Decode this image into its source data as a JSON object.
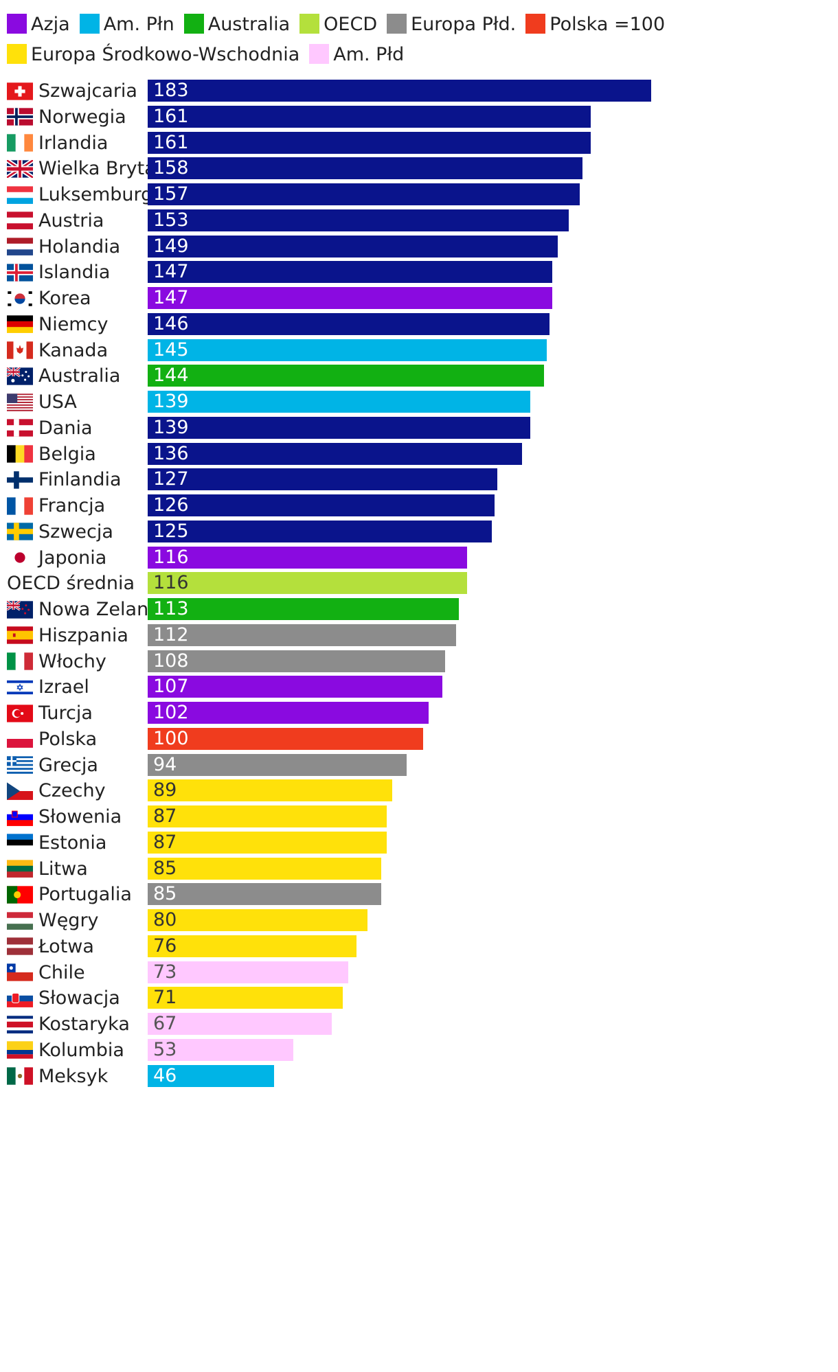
{
  "legend": [
    {
      "label": "Azja",
      "color": "#8a0ae0"
    },
    {
      "label": "Am. Płn",
      "color": "#00b4e6"
    },
    {
      "label": "Australia",
      "color": "#12b012"
    },
    {
      "label": "OECD",
      "color": "#b4e03c"
    },
    {
      "label": "Europa Płd.",
      "color": "#8c8c8c"
    },
    {
      "label": "Polska =100",
      "color": "#f03c1e"
    },
    {
      "label": "Europa Środkowo-Wschodnia",
      "color": "#ffe10a"
    },
    {
      "label": "Am. Płd",
      "color": "#ffc8ff"
    }
  ],
  "colors": {
    "europa_zach": "#0a148c",
    "azja": "#8a0ae0",
    "am_pln": "#00b4e6",
    "australia": "#12b012",
    "oecd": "#b4e03c",
    "europa_pld": "#8c8c8c",
    "polska": "#f03c1e",
    "europa_sw": "#ffe10a",
    "am_pld": "#ffc8ff"
  },
  "chart_data": {
    "type": "bar",
    "orientation": "horizontal",
    "xlim": [
      0,
      183
    ],
    "categories": [
      "Szwajcaria",
      "Norwegia",
      "Irlandia",
      "Wielka Brytania",
      "Luksemburg",
      "Austria",
      "Holandia",
      "Islandia",
      "Korea",
      "Niemcy",
      "Kanada",
      "Australia",
      "USA",
      "Dania",
      "Belgia",
      "Finlandia",
      "Francja",
      "Szwecja",
      "Japonia",
      "OECD średnia",
      "Nowa Zelandia",
      "Hiszpania",
      "Włochy",
      "Izrael",
      "Turcja",
      "Polska",
      "Grecja",
      "Czechy",
      "Słowenia",
      "Estonia",
      "Litwa",
      "Portugalia",
      "Węgry",
      "Łotwa",
      "Chile",
      "Słowacja",
      "Kostaryka",
      "Kolumbia",
      "Meksyk"
    ],
    "values": [
      183,
      161,
      161,
      158,
      157,
      153,
      149,
      147,
      147,
      146,
      145,
      144,
      139,
      139,
      136,
      127,
      126,
      125,
      116,
      116,
      113,
      112,
      108,
      107,
      102,
      100,
      94,
      89,
      87,
      87,
      85,
      85,
      80,
      76,
      73,
      71,
      67,
      53,
      46
    ],
    "groups": [
      "europa_zach",
      "europa_zach",
      "europa_zach",
      "europa_zach",
      "europa_zach",
      "europa_zach",
      "europa_zach",
      "europa_zach",
      "azja",
      "europa_zach",
      "am_pln",
      "australia",
      "am_pln",
      "europa_zach",
      "europa_zach",
      "europa_zach",
      "europa_zach",
      "europa_zach",
      "azja",
      "oecd",
      "australia",
      "europa_pld",
      "europa_pld",
      "azja",
      "azja",
      "polska",
      "europa_pld",
      "europa_sw",
      "europa_sw",
      "europa_sw",
      "europa_sw",
      "europa_pld",
      "europa_sw",
      "europa_sw",
      "am_pld",
      "europa_sw",
      "am_pld",
      "am_pld",
      "am_pln"
    ],
    "flags": [
      "ch",
      "no",
      "ie",
      "gb",
      "lu",
      "at",
      "nl",
      "is",
      "kr",
      "de",
      "ca",
      "au",
      "us",
      "dk",
      "be",
      "fi",
      "fr",
      "se",
      "jp",
      "",
      "nz",
      "es",
      "it",
      "il",
      "tr",
      "pl",
      "gr",
      "cz",
      "si",
      "ee",
      "lt",
      "pt",
      "hu",
      "lv",
      "cl",
      "sk",
      "cr",
      "co",
      "mx"
    ]
  }
}
